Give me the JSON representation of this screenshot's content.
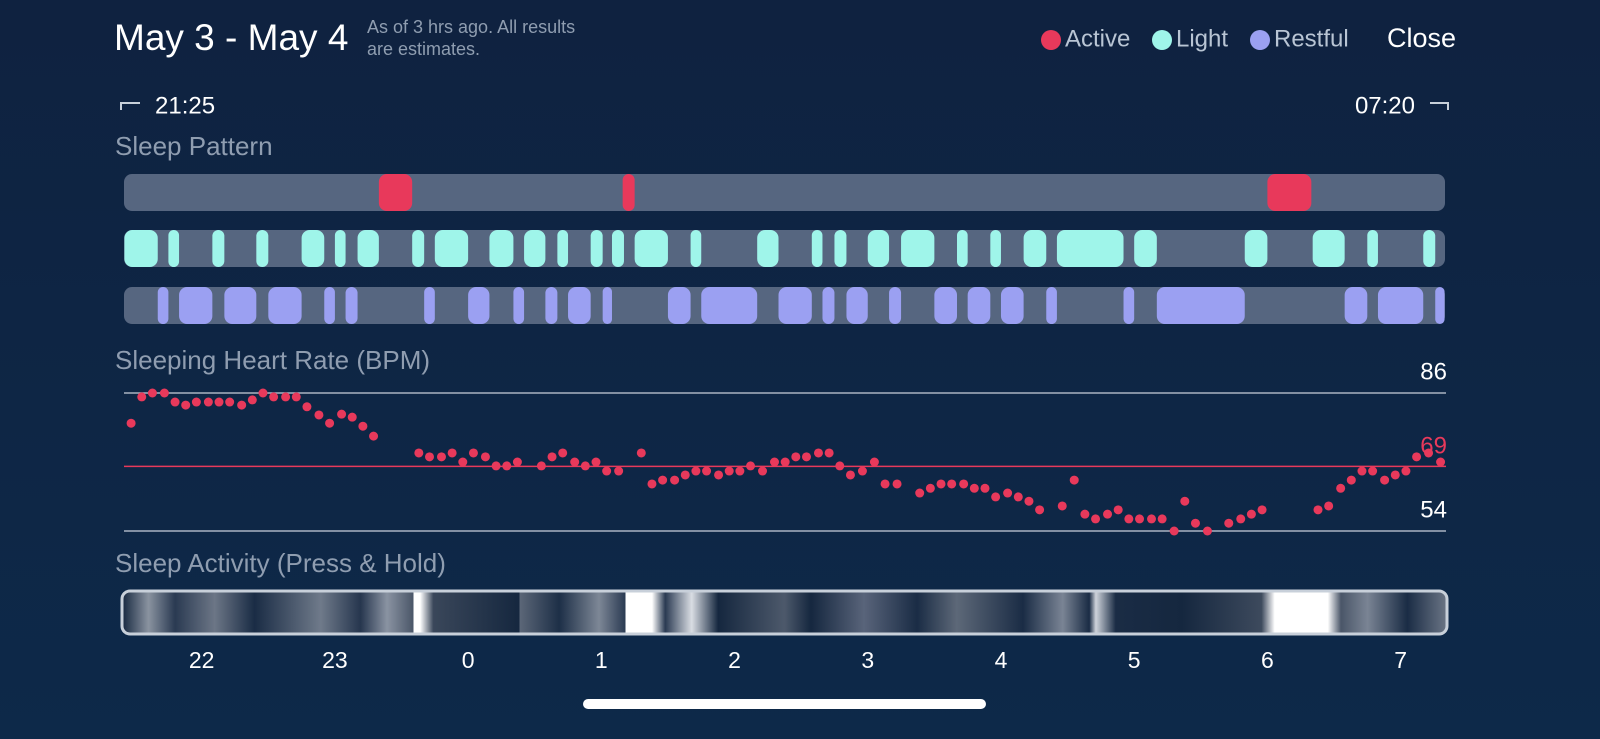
{
  "header": {
    "title": "May 3 - May 4",
    "note": [
      "As of 3 hrs ago. All results",
      "are estimates."
    ],
    "close": "Close",
    "start_time": "21:25",
    "end_time": "07:20"
  },
  "chart_data": [
    {
      "type": "timeline",
      "title": "Sleep Pattern",
      "xlim": [
        21.4167,
        31.3333
      ],
      "legend": "top-right",
      "series": [
        {
          "name": "Active",
          "color": "#e8395b",
          "segments": [
            [
              23.33,
              23.58
            ],
            [
              25.16,
              25.25
            ],
            [
              30.0,
              30.33
            ]
          ]
        },
        {
          "name": "Light",
          "color": "#9ff5ea",
          "segments": [
            [
              21.42,
              21.67
            ],
            [
              21.75,
              21.83
            ],
            [
              22.08,
              22.17
            ],
            [
              22.41,
              22.5
            ],
            [
              22.75,
              22.92
            ],
            [
              23.0,
              23.08
            ],
            [
              23.17,
              23.33
            ],
            [
              23.58,
              23.67
            ],
            [
              23.75,
              24.0
            ],
            [
              24.16,
              24.34
            ],
            [
              24.42,
              24.58
            ],
            [
              24.67,
              24.75
            ],
            [
              24.92,
              25.01
            ],
            [
              25.08,
              25.17
            ],
            [
              25.25,
              25.5
            ],
            [
              25.67,
              25.75
            ],
            [
              26.17,
              26.33
            ],
            [
              26.58,
              26.66
            ],
            [
              26.75,
              26.84
            ],
            [
              27.0,
              27.16
            ],
            [
              27.25,
              27.5
            ],
            [
              27.67,
              27.75
            ],
            [
              27.92,
              28.0
            ],
            [
              28.17,
              28.34
            ],
            [
              28.42,
              28.92
            ],
            [
              29.0,
              29.17
            ],
            [
              29.83,
              30.0
            ],
            [
              30.34,
              30.58
            ],
            [
              30.75,
              30.83
            ],
            [
              31.17,
              31.26
            ]
          ]
        },
        {
          "name": "Restful",
          "color": "#9ba0f2",
          "segments": [
            [
              21.67,
              21.75
            ],
            [
              21.83,
              22.08
            ],
            [
              22.17,
              22.41
            ],
            [
              22.5,
              22.75
            ],
            [
              22.92,
              23.0
            ],
            [
              23.08,
              23.17
            ],
            [
              23.67,
              23.75
            ],
            [
              24.0,
              24.16
            ],
            [
              24.34,
              24.42
            ],
            [
              24.58,
              24.67
            ],
            [
              24.75,
              24.92
            ],
            [
              25.01,
              25.08
            ],
            [
              25.5,
              25.67
            ],
            [
              25.75,
              26.17
            ],
            [
              26.33,
              26.58
            ],
            [
              26.66,
              26.75
            ],
            [
              26.84,
              27.0
            ],
            [
              27.16,
              27.25
            ],
            [
              27.5,
              27.67
            ],
            [
              27.75,
              27.92
            ],
            [
              28.0,
              28.17
            ],
            [
              28.34,
              28.42
            ],
            [
              28.92,
              29.0
            ],
            [
              29.17,
              29.83
            ],
            [
              30.58,
              30.75
            ],
            [
              30.83,
              31.17
            ],
            [
              31.26,
              31.33
            ]
          ]
        }
      ]
    },
    {
      "type": "scatter",
      "title": "Sleeping Heart Rate (BPM)",
      "color": "#e8395b",
      "xlim": [
        21.4167,
        31.3333
      ],
      "ylim": [
        54,
        86
      ],
      "yticks": [
        54,
        86
      ],
      "reference_line": {
        "value": 69,
        "color": "#e8395b"
      },
      "x": [
        21.47,
        21.55,
        21.63,
        21.72,
        21.8,
        21.88,
        21.96,
        22.05,
        22.13,
        22.21,
        22.3,
        22.38,
        22.46,
        22.54,
        22.63,
        22.71,
        22.79,
        22.88,
        22.96,
        23.05,
        23.13,
        23.21,
        23.29,
        23.63,
        23.71,
        23.8,
        23.88,
        23.96,
        24.04,
        24.13,
        24.21,
        24.29,
        24.37,
        24.55,
        24.63,
        24.71,
        24.8,
        24.88,
        24.96,
        25.04,
        25.13,
        25.3,
        25.38,
        25.46,
        25.55,
        25.63,
        25.71,
        25.79,
        25.88,
        25.96,
        26.04,
        26.12,
        26.21,
        26.3,
        26.38,
        26.46,
        26.54,
        26.63,
        26.71,
        26.79,
        26.87,
        26.96,
        27.05,
        27.13,
        27.22,
        27.39,
        27.47,
        27.55,
        27.63,
        27.72,
        27.8,
        27.88,
        27.96,
        28.05,
        28.13,
        28.21,
        28.29,
        28.46,
        28.55,
        28.63,
        28.71,
        28.8,
        28.88,
        28.96,
        29.04,
        29.13,
        29.21,
        29.3,
        29.38,
        29.46,
        29.55,
        29.71,
        29.8,
        29.88,
        29.96,
        30.38,
        30.46,
        30.55,
        30.63,
        30.71,
        30.79,
        30.88,
        30.96,
        31.04,
        31.12,
        31.21,
        31.3
      ],
      "values": [
        79.0,
        85.1,
        86,
        86,
        83.9,
        83.2,
        83.9,
        83.9,
        83.9,
        83.9,
        83.2,
        84.4,
        86,
        85.1,
        85.1,
        85.1,
        82.8,
        80.9,
        79.0,
        81.1,
        80.4,
        78.3,
        76.0,
        72.1,
        71.2,
        71.2,
        72.1,
        70.0,
        72.1,
        71.2,
        69.1,
        69.1,
        70.0,
        69.1,
        71.2,
        72.1,
        70.0,
        69.1,
        70.0,
        67.9,
        67.9,
        72.1,
        64.9,
        65.8,
        65.8,
        67.0,
        67.9,
        67.9,
        67.0,
        67.9,
        67.9,
        69.1,
        67.9,
        70.0,
        70.0,
        71.2,
        71.2,
        72.1,
        72.1,
        69.1,
        67.0,
        67.9,
        70.0,
        64.9,
        64.9,
        62.8,
        63.9,
        64.9,
        64.9,
        64.9,
        63.9,
        63.9,
        61.9,
        62.8,
        61.9,
        60.9,
        58.9,
        59.8,
        65.8,
        57.9,
        56.8,
        57.9,
        58.9,
        56.8,
        56.8,
        56.8,
        56.8,
        54.0,
        60.9,
        55.8,
        54.0,
        55.8,
        56.8,
        57.9,
        58.9,
        58.9,
        59.8,
        63.9,
        65.8,
        67.9,
        67.9,
        65.8,
        67.0,
        67.9,
        71.2,
        72.1,
        70.0
      ]
    },
    {
      "type": "heatmap",
      "title": "Sleep Activity (Press & Hold)",
      "xlim": [
        21.4167,
        31.3333
      ],
      "xticks": [
        22,
        23,
        {
          "value": 24,
          "label": "0"
        },
        {
          "value": 25,
          "label": "1"
        },
        {
          "value": 26,
          "label": "2"
        },
        {
          "value": 27,
          "label": "3"
        },
        {
          "value": 28,
          "label": "4"
        },
        {
          "value": 29,
          "label": "5"
        },
        {
          "value": 30,
          "label": "6"
        },
        {
          "value": 31,
          "label": "7"
        }
      ]
    }
  ]
}
